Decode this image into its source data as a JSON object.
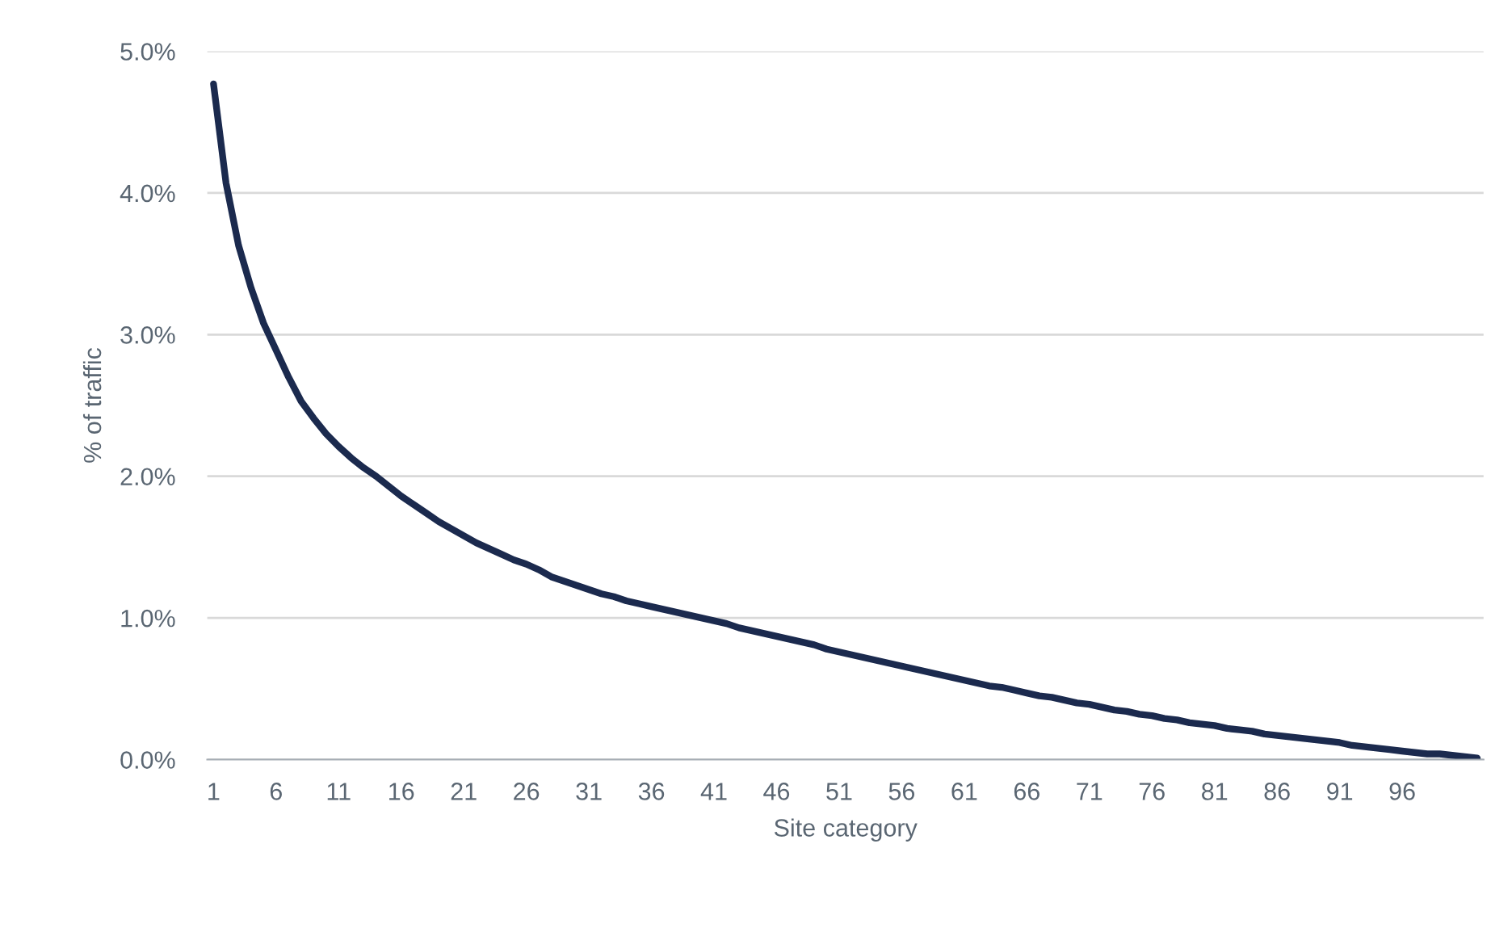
{
  "chart_data": {
    "type": "line",
    "xlabel": "Site category",
    "ylabel": "% of traffic",
    "categories": [
      "1",
      null,
      null,
      null,
      null,
      "6",
      null,
      null,
      null,
      null,
      "11",
      null,
      null,
      null,
      null,
      "16",
      null,
      null,
      null,
      null,
      "21",
      null,
      null,
      null,
      null,
      "26",
      null,
      null,
      null,
      null,
      "31",
      null,
      null,
      null,
      null,
      "36",
      null,
      null,
      null,
      null,
      "41",
      null,
      null,
      null,
      null,
      "46",
      null,
      null,
      null,
      null,
      "51",
      null,
      null,
      null,
      null,
      "56",
      null,
      null,
      null,
      null,
      "61",
      null,
      null,
      null,
      null,
      "66",
      null,
      null,
      null,
      null,
      "71",
      null,
      null,
      null,
      null,
      "76",
      null,
      null,
      null,
      null,
      "81",
      null,
      null,
      null,
      null,
      "86",
      null,
      null,
      null,
      null,
      "91",
      null,
      null,
      null,
      null,
      "96",
      null,
      null,
      null,
      null,
      null,
      null
    ],
    "series": [
      {
        "color": "#1b2a4e",
        "values": [
          4.77,
          4.07,
          3.63,
          3.33,
          3.08,
          2.89,
          2.7,
          2.53,
          2.41,
          2.3,
          2.21,
          2.13,
          2.06,
          2.0,
          1.93,
          1.86,
          1.8,
          1.74,
          1.68,
          1.63,
          1.58,
          1.53,
          1.49,
          1.45,
          1.41,
          1.38,
          1.34,
          1.29,
          1.26,
          1.23,
          1.2,
          1.17,
          1.15,
          1.12,
          1.1,
          1.08,
          1.06,
          1.04,
          1.02,
          1.0,
          0.98,
          0.96,
          0.93,
          0.91,
          0.89,
          0.87,
          0.85,
          0.83,
          0.81,
          0.78,
          0.76,
          0.74,
          0.72,
          0.7,
          0.68,
          0.66,
          0.64,
          0.62,
          0.6,
          0.58,
          0.56,
          0.54,
          0.52,
          0.51,
          0.49,
          0.47,
          0.45,
          0.44,
          0.42,
          0.4,
          0.39,
          0.37,
          0.35,
          0.34,
          0.32,
          0.31,
          0.29,
          0.28,
          0.26,
          0.25,
          0.24,
          0.22,
          0.21,
          0.2,
          0.18,
          0.17,
          0.16,
          0.15,
          0.14,
          0.13,
          0.12,
          0.1,
          0.09,
          0.08,
          0.07,
          0.06,
          0.05,
          0.04,
          0.04,
          0.03,
          0.02,
          0.01
        ]
      }
    ],
    "ylim": [
      0,
      5
    ],
    "yticks": [
      {
        "value": 0,
        "label": "0.0%"
      },
      {
        "value": 1,
        "label": "1.0%"
      },
      {
        "value": 2,
        "label": "2.0%"
      },
      {
        "value": 3,
        "label": "3.0%"
      },
      {
        "value": 4,
        "label": "4.0%"
      },
      {
        "value": 5,
        "label": "5.0%"
      }
    ],
    "grid": "y",
    "marker": "none",
    "line_style": "solid"
  }
}
